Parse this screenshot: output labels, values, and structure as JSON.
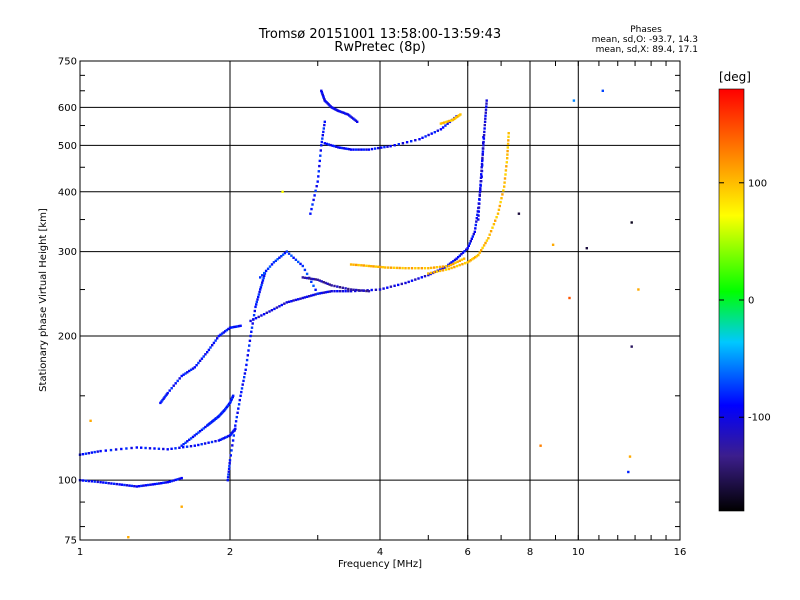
{
  "chart_data": {
    "type": "scatter",
    "title": "Tromsø 20151001 13:58:00-13:59:43",
    "subtitle": "RwPretec (8p)",
    "xlabel": "Frequency [MHz]",
    "ylabel": "Stationary phase Virtual Height [km]",
    "x_scale": "log",
    "y_scale": "log",
    "xlim": [
      1,
      16
    ],
    "ylim": [
      75,
      750
    ],
    "x_ticks": [
      1,
      2,
      4,
      6,
      8,
      10,
      16
    ],
    "x_tick_labels": [
      "1",
      "2",
      "4",
      "6",
      "8",
      "10",
      "16"
    ],
    "y_ticks": [
      75,
      100,
      200,
      300,
      400,
      500,
      600,
      750
    ],
    "y_tick_labels": [
      "75",
      "100",
      "200",
      "300",
      "400",
      "500",
      "600",
      "750"
    ],
    "grid": true,
    "phase_box": {
      "title": "Phases",
      "line_o": "mean, sd,O: -93.7, 14.3",
      "line_x": "mean, sd,X:  89.4, 17.1"
    },
    "colorbar": {
      "label": "[deg]",
      "range": [
        -180,
        180
      ],
      "ticks": [
        100,
        0,
        -100
      ],
      "tick_labels": [
        "100",
        "0",
        "-100"
      ]
    },
    "colors": {
      "o_mode": "#1e46ff",
      "x_mode": "#e6e600",
      "purple": "#3c1e8c",
      "cyan": "#00c8e6"
    },
    "series": [
      {
        "traces": [
          {
            "x": [
              1.0,
              1.1,
              1.2,
              1.3,
              1.4,
              1.5,
              1.6
            ],
            "y": [
              100,
              99,
              98,
              97,
              98,
              99,
              101
            ],
            "phase": -100
          },
          {
            "x": [
              1.0,
              1.1,
              1.3,
              1.5,
              1.7,
              1.9,
              2.0,
              2.05
            ],
            "y": [
              113,
              115,
              117,
              116,
              118,
              121,
              124,
              128
            ],
            "phase": -98
          },
          {
            "x": [
              1.45,
              1.5,
              1.6,
              1.7,
              1.8,
              1.9,
              2.0,
              2.1
            ],
            "y": [
              145,
              152,
              165,
              172,
              185,
              200,
              208,
              210
            ],
            "phase": -96
          },
          {
            "x": [
              1.6,
              1.7,
              1.8,
              1.85,
              1.9,
              1.95,
              2.0,
              2.03
            ],
            "y": [
              118,
              124,
              130,
              133,
              136,
              140,
              145,
              150
            ],
            "phase": -92
          },
          {
            "x": [
              1.98,
              2.0,
              2.05,
              2.1,
              2.15,
              2.2,
              2.25,
              2.3,
              2.35
            ],
            "y": [
              100,
              110,
              130,
              150,
              170,
              200,
              230,
              250,
              270
            ],
            "phase": -95
          },
          {
            "x": [
              2.2,
              2.4,
              2.6,
              2.8,
              3.0,
              3.2,
              3.5,
              4.0,
              4.5,
              5.0,
              5.4
            ],
            "y": [
              215,
              225,
              235,
              240,
              245,
              248,
              248,
              250,
              258,
              268,
              278
            ],
            "phase": -110
          },
          {
            "x": [
              2.3,
              2.45,
              2.6,
              2.8,
              3.0
            ],
            "y": [
              265,
              285,
              300,
              280,
              245
            ],
            "phase": -85
          },
          {
            "x": [
              2.8,
              3.0,
              3.2,
              3.5,
              3.8
            ],
            "y": [
              265,
              262,
              255,
              250,
              248
            ],
            "phase": -128
          },
          {
            "x": [
              5.4,
              5.7,
              6.0,
              6.2,
              6.3,
              6.4,
              6.45
            ],
            "y": [
              278,
              290,
              305,
              330,
              370,
              430,
              520
            ],
            "phase": -102
          },
          {
            "x": [
              6.3,
              6.35,
              6.4,
              6.45,
              6.5,
              6.55
            ],
            "y": [
              350,
              400,
              450,
              500,
              560,
              620
            ],
            "phase": -110
          },
          {
            "x": [
              3.1,
              3.3,
              3.5,
              3.8,
              4.2,
              4.8,
              5.3,
              5.7
            ],
            "y": [
              505,
              495,
              490,
              490,
              498,
              515,
              540,
              575
            ],
            "phase": -100
          },
          {
            "x": [
              3.05,
              3.1,
              3.2,
              3.3,
              3.45,
              3.6
            ],
            "y": [
              650,
              620,
              600,
              590,
              580,
              560
            ],
            "phase": -105
          },
          {
            "x": [
              2.9,
              3.0,
              3.05,
              3.1
            ],
            "y": [
              360,
              420,
              500,
              560
            ],
            "phase": -95
          }
        ]
      },
      {
        "traces": [
          {
            "x": [
              3.5,
              3.8,
              4.1,
              4.5,
              5.0,
              5.5,
              5.9
            ],
            "y": [
              282,
              280,
              278,
              277,
              277,
              280,
              290
            ],
            "phase": 95
          },
          {
            "x": [
              5.0,
              5.5,
              6.0,
              6.3,
              6.6,
              6.9,
              7.1,
              7.2,
              7.25
            ],
            "y": [
              270,
              276,
              285,
              295,
              320,
              360,
              410,
              470,
              530
            ],
            "phase": 92
          },
          {
            "x": [
              5.3,
              5.6,
              5.8
            ],
            "y": [
              555,
              565,
              580
            ],
            "phase": 90
          }
        ]
      },
      {
        "scattered": [
          {
            "x": 1.05,
            "y": 133,
            "phase": 100
          },
          {
            "x": 1.25,
            "y": 76,
            "phase": 100
          },
          {
            "x": 1.6,
            "y": 88,
            "phase": 100
          },
          {
            "x": 2.55,
            "y": 400,
            "phase": 60
          },
          {
            "x": 7.6,
            "y": 360,
            "phase": -160
          },
          {
            "x": 8.4,
            "y": 118,
            "phase": 120
          },
          {
            "x": 8.9,
            "y": 310,
            "phase": 100
          },
          {
            "x": 9.6,
            "y": 240,
            "phase": 140
          },
          {
            "x": 9.8,
            "y": 620,
            "phase": -60
          },
          {
            "x": 10.4,
            "y": 305,
            "phase": -160
          },
          {
            "x": 11.2,
            "y": 650,
            "phase": -80
          },
          {
            "x": 12.8,
            "y": 345,
            "phase": -170
          },
          {
            "x": 12.8,
            "y": 190,
            "phase": -150
          },
          {
            "x": 12.6,
            "y": 104,
            "phase": -90
          },
          {
            "x": 12.7,
            "y": 112,
            "phase": 100
          },
          {
            "x": 13.2,
            "y": 250,
            "phase": 100
          }
        ]
      }
    ]
  }
}
